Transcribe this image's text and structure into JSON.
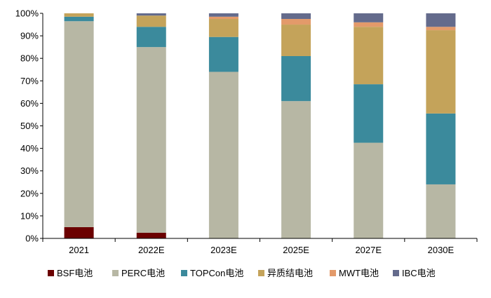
{
  "chart_data": {
    "type": "bar",
    "stacked": true,
    "categories": [
      "2021",
      "2022E",
      "2023E",
      "2025E",
      "2027E",
      "2030E"
    ],
    "series": [
      {
        "name": "BSF电池",
        "color": "#6b0000",
        "values": [
          5,
          2.5,
          0,
          0,
          0,
          0
        ]
      },
      {
        "name": "PERC电池",
        "color": "#b7b7a4",
        "values": [
          91.5,
          82.5,
          74,
          61,
          42.5,
          24
        ]
      },
      {
        "name": "TOPCon电池",
        "color": "#3b8a9c",
        "values": [
          2,
          9,
          15.5,
          20,
          26,
          31.5
        ]
      },
      {
        "name": "异质结电池",
        "color": "#c4a35a",
        "values": [
          1.5,
          5,
          8,
          14,
          25.5,
          37
        ]
      },
      {
        "name": "MWT电池",
        "color": "#e39a6a",
        "values": [
          0,
          0,
          1,
          2.5,
          2,
          1.5
        ]
      },
      {
        "name": "IBC电池",
        "color": "#646b8c",
        "values": [
          0,
          1,
          1.5,
          2.5,
          4,
          6
        ]
      }
    ],
    "y_ticks": [
      "0%",
      "10%",
      "20%",
      "30%",
      "40%",
      "50%",
      "60%",
      "70%",
      "80%",
      "90%",
      "100%"
    ],
    "ylim": [
      0,
      100
    ],
    "grid": false,
    "legend_position": "bottom"
  }
}
